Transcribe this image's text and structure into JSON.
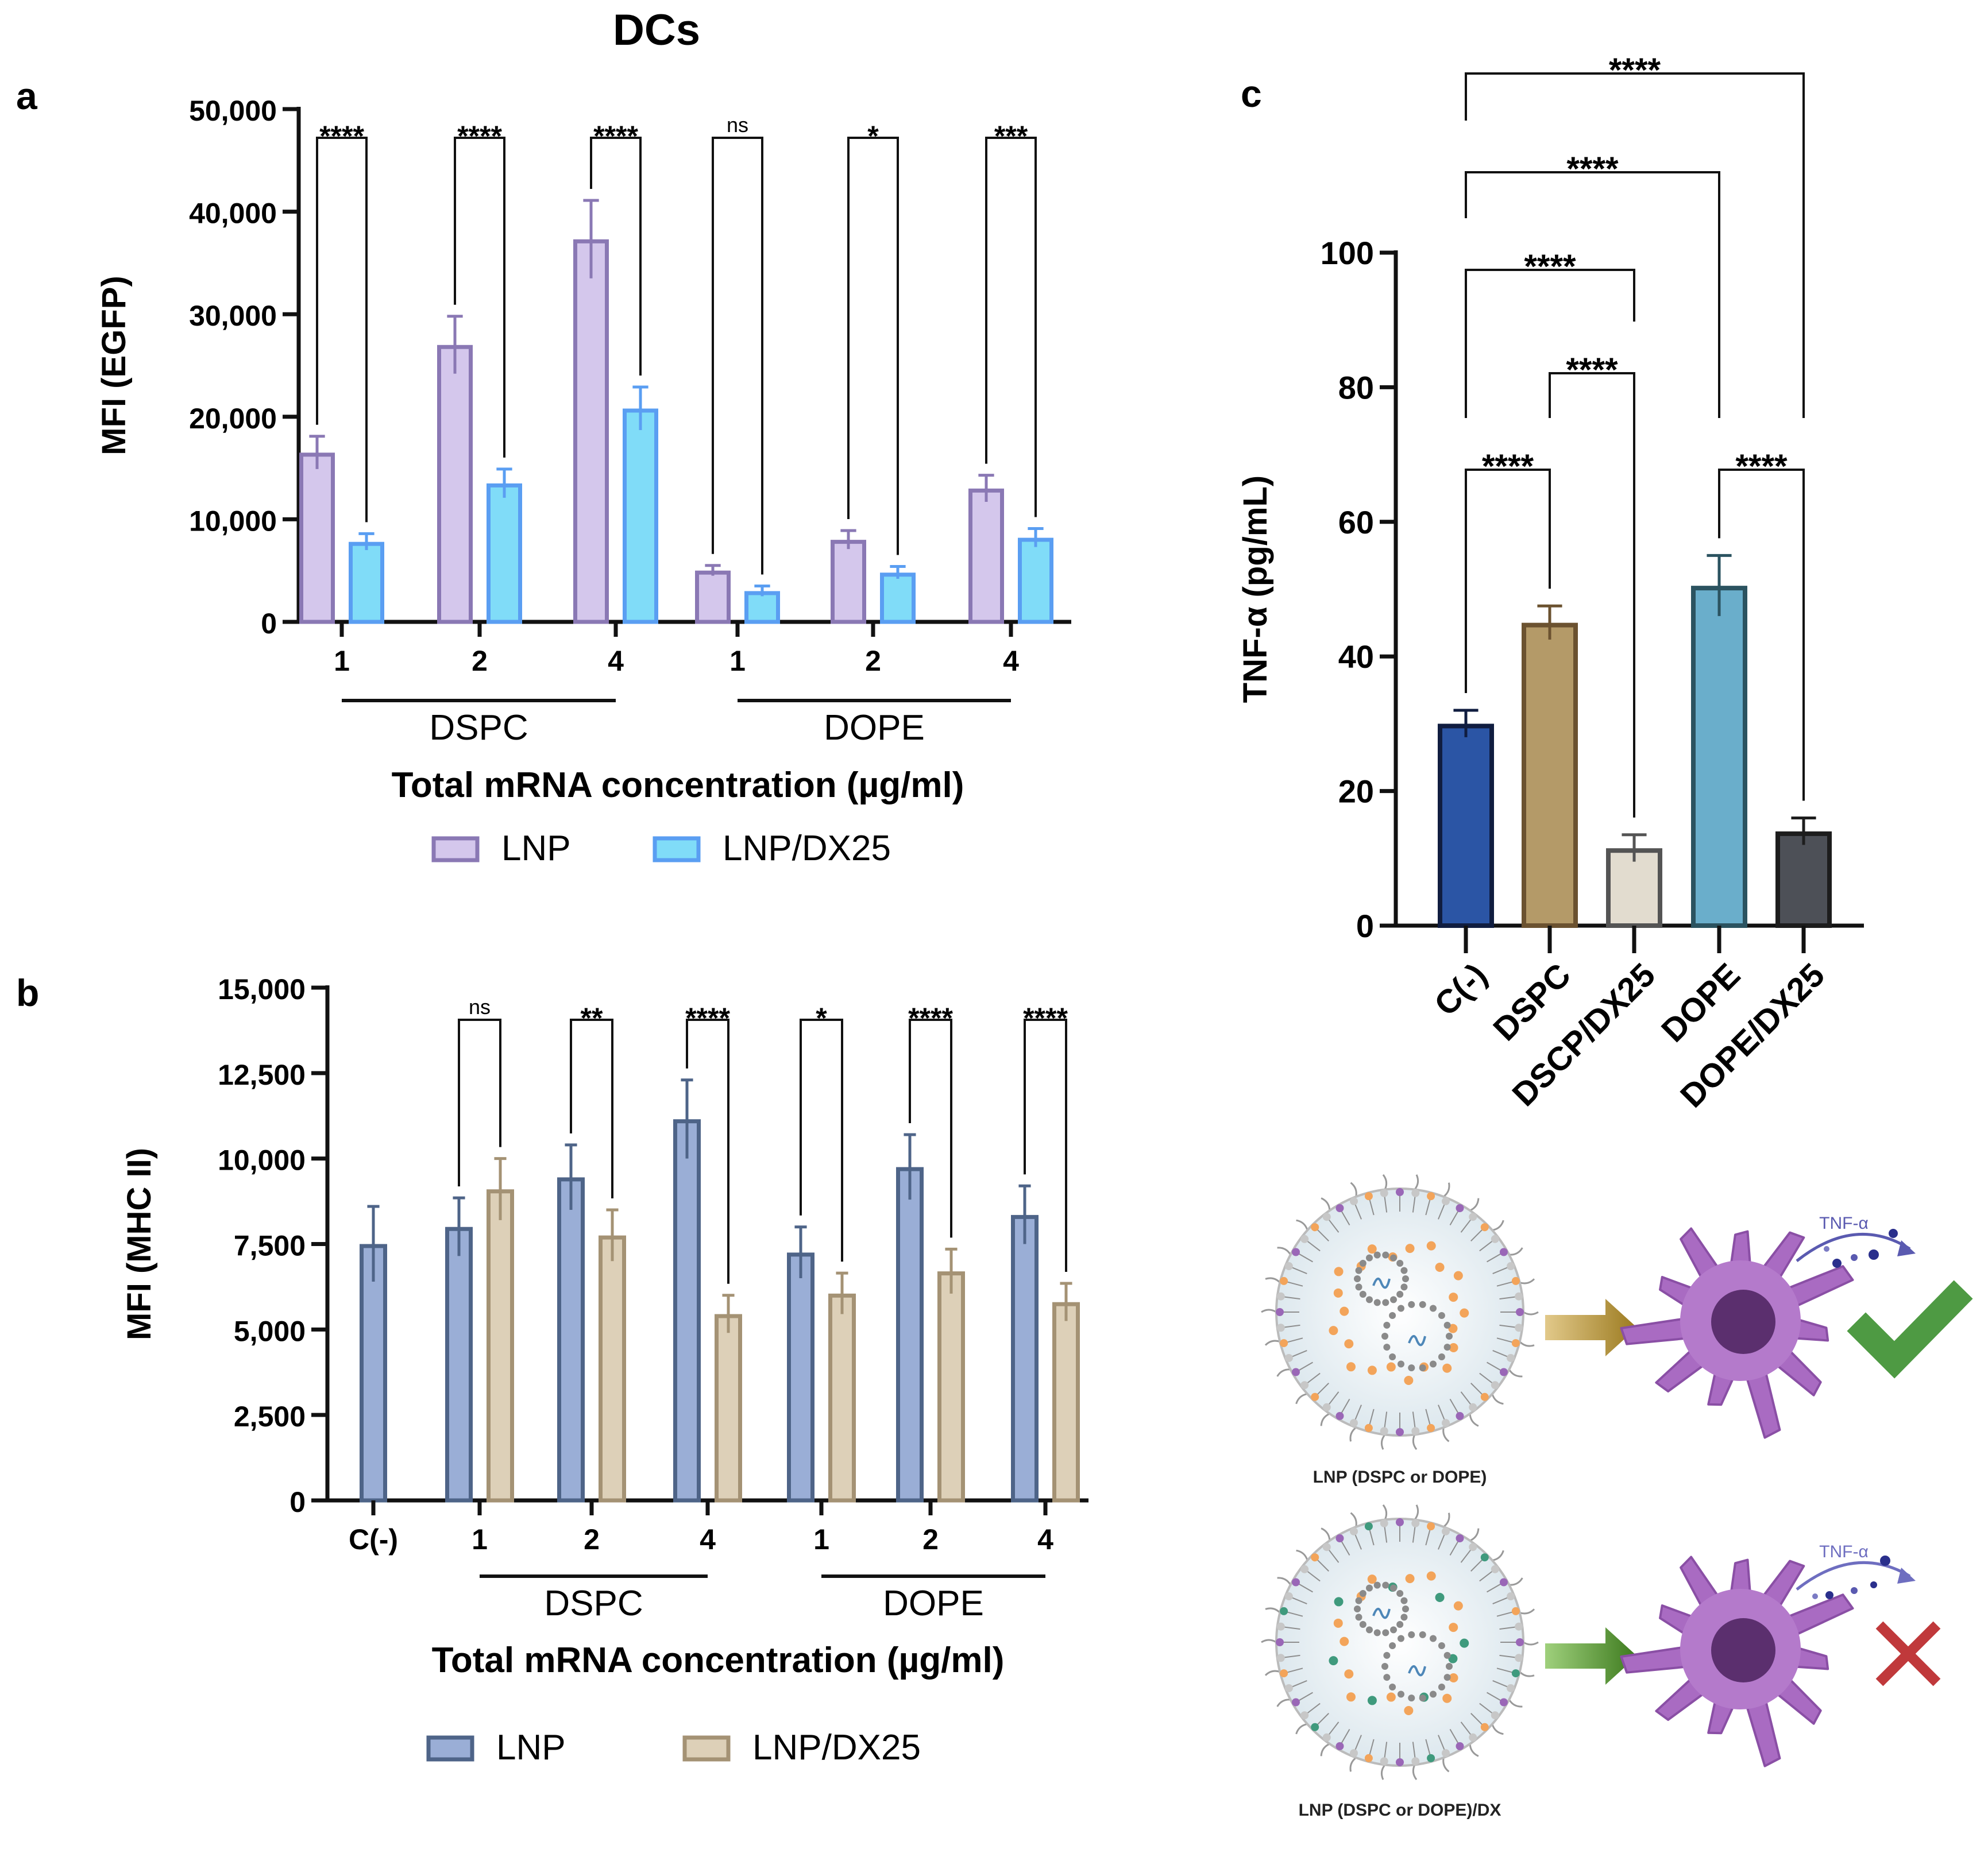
{
  "figure": {
    "title": "DCs",
    "schematic": {
      "cytokine_label": "TNF-α",
      "top_caption": "LNP (DSPC or DOPE)",
      "bottom_caption": "LNP (DSPC or DOPE)/DX"
    }
  },
  "chart_data": [
    {
      "panel": "a",
      "type": "bar",
      "title": "",
      "ylabel": "MFI (EGFP)",
      "xlabel": "Total mRNA concentration (µg/ml)",
      "ylim": [
        0,
        50000
      ],
      "yticks": [
        0,
        10000,
        20000,
        30000,
        40000,
        50000
      ],
      "ytick_labels": [
        "0",
        "10,000",
        "20,000",
        "30,000",
        "40,000",
        "50,000"
      ],
      "groups": [
        {
          "label": "DSPC",
          "categories": [
            "1",
            "2",
            "4"
          ]
        },
        {
          "label": "DOPE",
          "categories": [
            "1",
            "2",
            "4"
          ]
        }
      ],
      "series": [
        {
          "name": "LNP",
          "fill": "#d4c7ec",
          "stroke": "#8a78b4",
          "values": [
            16500,
            27000,
            37300,
            5000,
            8000,
            13000
          ],
          "errors": [
            1600,
            2800,
            3800,
            500,
            900,
            1300
          ]
        },
        {
          "name": "LNP/DX25",
          "fill": "#80dcf8",
          "stroke": "#5a9ef2",
          "values": [
            7800,
            13500,
            20800,
            3000,
            4800,
            8200
          ],
          "errors": [
            800,
            1400,
            2100,
            500,
            600,
            900
          ]
        }
      ],
      "significance": [
        "****",
        "****",
        "****",
        "ns",
        "*",
        "***"
      ],
      "legend": [
        "LNP",
        "LNP/DX25"
      ]
    },
    {
      "panel": "b",
      "type": "bar",
      "title": "",
      "ylabel": "MFI (MHC II)",
      "xlabel": "Total mRNA concentration (µg/ml)",
      "ylim": [
        0,
        15000
      ],
      "yticks": [
        0,
        2500,
        5000,
        7500,
        10000,
        12500,
        15000
      ],
      "ytick_labels": [
        "0",
        "2,500",
        "5,000",
        "7,500",
        "10,000",
        "12,500",
        "15,000"
      ],
      "control": {
        "label": "C(-)",
        "value": 7500,
        "error": 1100
      },
      "groups": [
        {
          "label": "DSPC",
          "categories": [
            "1",
            "2",
            "4"
          ]
        },
        {
          "label": "DOPE",
          "categories": [
            "1",
            "2",
            "4"
          ]
        }
      ],
      "series": [
        {
          "name": "LNP",
          "fill": "#9aaed6",
          "stroke": "#4e6488",
          "values": [
            8000,
            9450,
            11150,
            7250,
            9750,
            8350
          ],
          "errors": [
            850,
            950,
            1150,
            750,
            950,
            850
          ]
        },
        {
          "name": "LNP/DX25",
          "fill": "#ddd0b8",
          "stroke": "#a49274",
          "values": [
            9100,
            7750,
            5450,
            6050,
            6700,
            5800
          ],
          "errors": [
            900,
            750,
            550,
            600,
            650,
            550
          ]
        }
      ],
      "significance": [
        "ns",
        "**",
        "****",
        "*",
        "****",
        "****"
      ],
      "legend": [
        "LNP",
        "LNP/DX25"
      ]
    },
    {
      "panel": "c",
      "type": "bar",
      "title": "",
      "ylabel": "TNF-α (pg/mL)",
      "xlabel": "",
      "ylim": [
        0,
        100
      ],
      "yticks": [
        0,
        20,
        40,
        60,
        80,
        100
      ],
      "ytick_labels": [
        "0",
        "20",
        "40",
        "60",
        "80",
        "100"
      ],
      "categories": [
        "C(-)",
        "DSPC",
        "DSCP/DX25",
        "DOPE",
        "DOPE/DX25"
      ],
      "values": [
        30,
        45,
        11.5,
        50.5,
        14
      ],
      "errors": [
        2,
        2.5,
        2,
        4.5,
        2
      ],
      "colors": [
        "#2b55a5",
        "#b49a68",
        "#e2dccf",
        "#6aaecb",
        "#4d5057"
      ],
      "strokes": [
        "#101d40",
        "#6b5230",
        "#545454",
        "#2b5360",
        "#1d1d1d"
      ],
      "comparisons": [
        {
          "from": "C(-)",
          "to": "DSPC",
          "label": "****"
        },
        {
          "from": "DOPE",
          "to": "DOPE/DX25",
          "label": "****"
        },
        {
          "from": "DSPC",
          "to": "DSCP/DX25",
          "label": "****"
        },
        {
          "from": "C(-)",
          "to": "DSCP/DX25",
          "label": "****"
        },
        {
          "from": "C(-)",
          "to": "DOPE",
          "label": "****"
        },
        {
          "from": "C(-)",
          "to": "DOPE/DX25",
          "label": "****"
        }
      ]
    }
  ]
}
